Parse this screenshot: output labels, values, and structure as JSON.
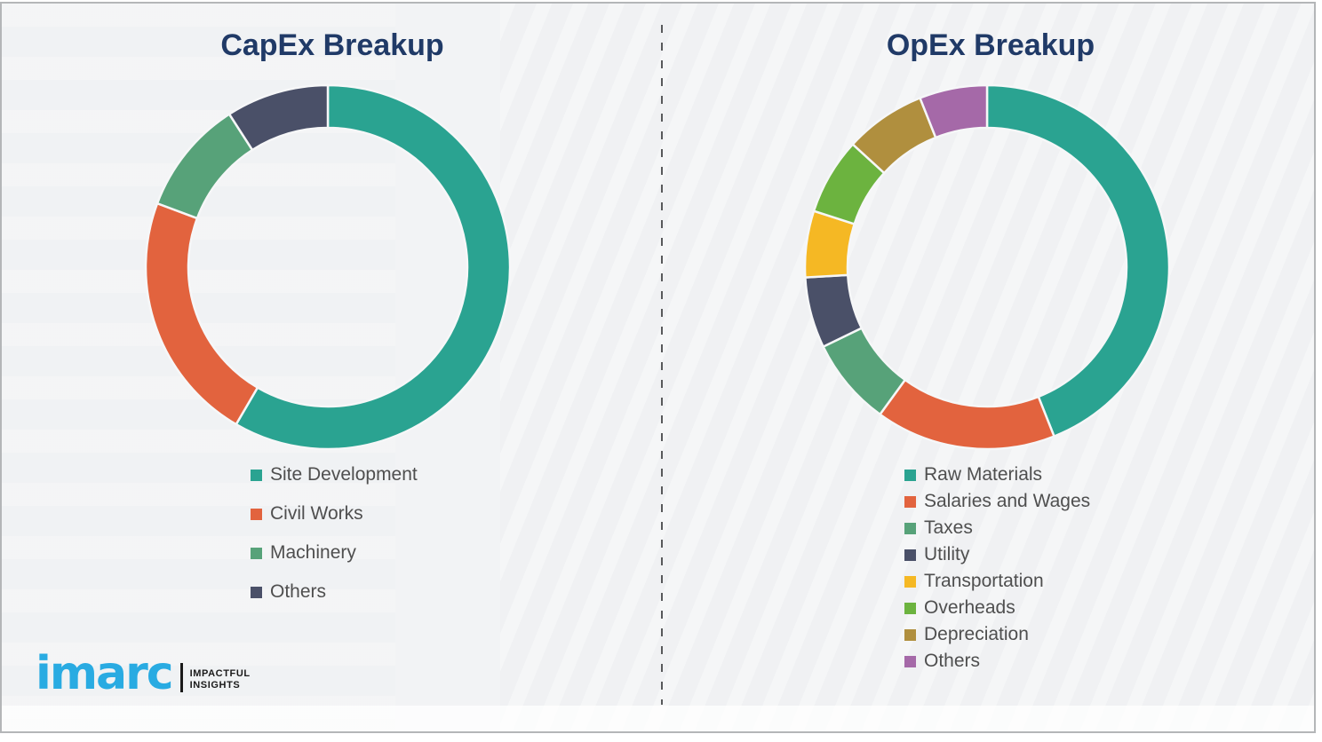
{
  "page": {
    "background_color": "#f2f3f5",
    "frame_border_color": "#b4b6b8",
    "divider_color": "#58595b",
    "title_color": "#203a67",
    "legend_text_color": "#4f4f4f"
  },
  "branding": {
    "logo_text": "imarc",
    "logo_color": "#29abe2",
    "tagline_line1": "IMPACTFUL",
    "tagline_line2": "INSIGHTS"
  },
  "chart_data": [
    {
      "type": "donut",
      "title": "CapEx Breakup",
      "note": "no numeric labels shown; values are percentages estimated from arc angles, clockwise from top",
      "start_angle_deg": 0,
      "direction": "clockwise",
      "legend_position": "below-left",
      "series": [
        {
          "label": "Site Development",
          "value": 58.4,
          "color": "#2aa391"
        },
        {
          "label": "Civil Works",
          "value": 22.3,
          "color": "#e2633e"
        },
        {
          "label": "Machinery",
          "value": 10.2,
          "color": "#57a279"
        },
        {
          "label": "Others",
          "value": 9.1,
          "color": "#4a5068"
        }
      ]
    },
    {
      "type": "donut",
      "title": "OpEx Breakup",
      "note": "no numeric labels shown; values are percentages estimated from arc angles, clockwise from top",
      "start_angle_deg": 0,
      "direction": "clockwise",
      "legend_position": "below-left",
      "series": [
        {
          "label": "Raw Materials",
          "value": 44.0,
          "color": "#2aa391"
        },
        {
          "label": "Salaries and Wages",
          "value": 16.0,
          "color": "#e2633e"
        },
        {
          "label": "Taxes",
          "value": 7.8,
          "color": "#57a279"
        },
        {
          "label": "Utility",
          "value": 6.3,
          "color": "#4a5068"
        },
        {
          "label": "Transportation",
          "value": 5.9,
          "color": "#f5b824"
        },
        {
          "label": "Overheads",
          "value": 6.8,
          "color": "#6cb33f"
        },
        {
          "label": "Depreciation",
          "value": 7.2,
          "color": "#b08f3e"
        },
        {
          "label": "Others",
          "value": 6.0,
          "color": "#a569a8"
        }
      ]
    }
  ]
}
